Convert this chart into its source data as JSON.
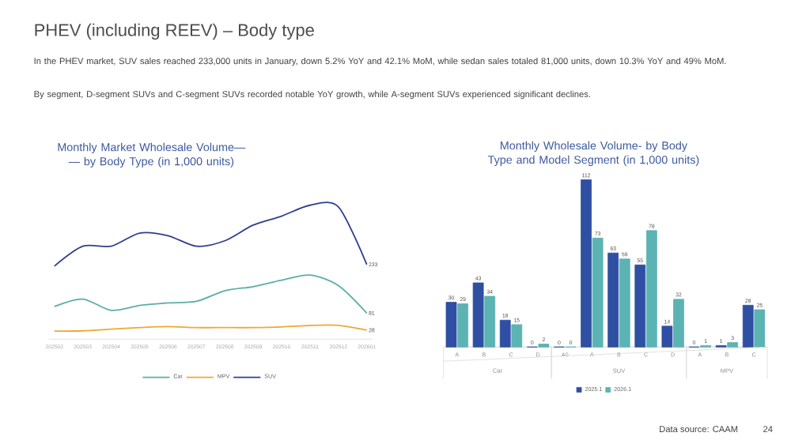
{
  "chart_data": [
    {
      "type": "other",
      "title": "PHEV (including REEV) – Body type",
      "annotations": [
        "In the PHEV market, SUV sales reached 233,000 units in January, down 5.2% YoY and 42.1% MoM, while sedan sales totaled 81,000 units, down 10.3% YoY and 49% MoM.",
        "By segment, D-segment SUVs and C-segment SUVs recorded notable YoY growth, while A-segment SUVs experienced significant declines.",
        "Data source: CAAM",
        "24"
      ]
    },
    {
      "type": "line",
      "title": "Monthly Market Wholesale Volume—— by Body Type (in 1,000 units)",
      "categories": [
        "202502",
        "202503",
        "202504",
        "202505",
        "202506",
        "202507",
        "202508",
        "202509",
        "202510",
        "202511",
        "202512",
        "202601"
      ],
      "series": [
        {
          "name": "Car",
          "color": "#5aaea8",
          "values": [
            102,
            125,
            90,
            105,
            113,
            118,
            151,
            164,
            184,
            200,
            167,
            81
          ],
          "value_labels": [
            null,
            null,
            null,
            null,
            null,
            null,
            null,
            null,
            null,
            null,
            null,
            "81"
          ]
        },
        {
          "name": "MPV",
          "color": "#f0a830",
          "values": [
            25,
            26,
            31,
            36,
            39,
            36,
            36,
            36,
            38,
            43,
            43,
            28
          ],
          "value_labels": [
            null,
            null,
            null,
            null,
            null,
            null,
            null,
            null,
            null,
            null,
            null,
            "28"
          ]
        },
        {
          "name": "SUV",
          "color": "#2e3f8f",
          "values": [
            228,
            290,
            290,
            331,
            323,
            290,
            307,
            356,
            384,
            418,
            413,
            233
          ],
          "value_labels": [
            null,
            null,
            null,
            null,
            null,
            null,
            null,
            null,
            null,
            null,
            null,
            "233"
          ]
        }
      ],
      "legend": "bottom"
    },
    {
      "type": "bar",
      "title": "Monthly Wholesale Volume- by Body Type and Model Segment (in 1,000 units)",
      "categories": [
        "A",
        "B",
        "C",
        "D",
        "A0",
        "A",
        "B",
        "C",
        "D",
        "A",
        "B",
        "C"
      ],
      "series": [
        {
          "name": "2025.1",
          "color": "#2f4fa2",
          "values": [
            30,
            43,
            18,
            0,
            0,
            112,
            63,
            55,
            14,
            0,
            1,
            28
          ]
        },
        {
          "name": "2026.1",
          "color": "#5cb3b3",
          "values": [
            29,
            34,
            15,
            2,
            0,
            73,
            59,
            78,
            32,
            1,
            3,
            25
          ]
        }
      ],
      "annotations": [
        "Car",
        "SUV",
        "MPV"
      ],
      "data_labels": true,
      "legend": "bottom"
    }
  ]
}
